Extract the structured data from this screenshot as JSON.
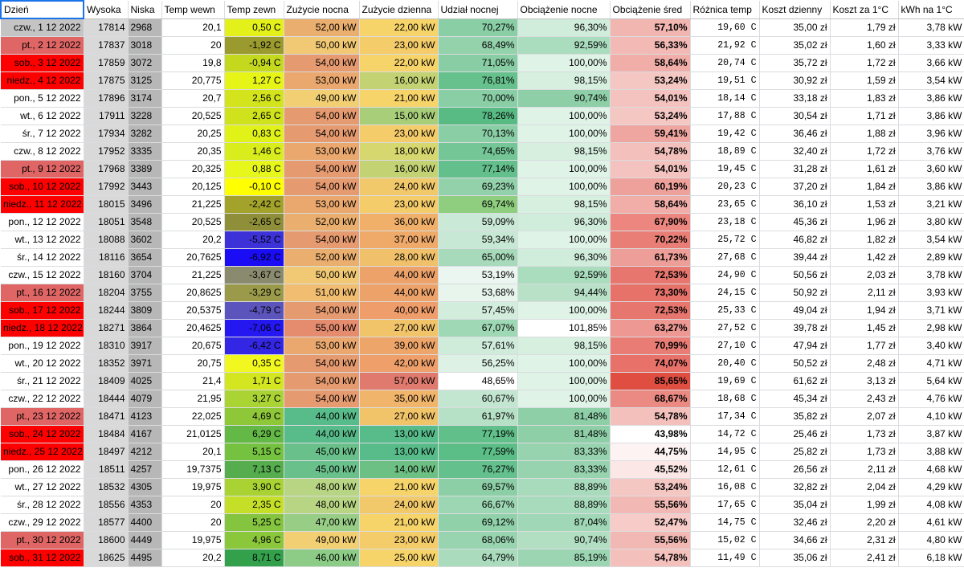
{
  "headers": [
    "Dzień",
    "Wysoka",
    "Niska",
    "Temp wewn",
    "Temp zewn",
    "Zużycie nocna",
    "Zużycie dzienna",
    "Udział nocnej",
    "Obciążenie nocne",
    "Obciążenie śred",
    "Różnica temp",
    "Koszt dzienny",
    "Koszt za 1°C",
    "kWh na 1°C"
  ],
  "rows": [
    [
      "czw., 1 12 2022",
      "17814",
      "2968",
      "20,1",
      "0,50 C",
      "52,00 kW",
      "22,00 kW",
      "70,27%",
      "96,30%",
      "57,10%",
      "19,60 C",
      "35,00 zł",
      "1,79 zł",
      "3,78 kW"
    ],
    [
      "pt., 2 12 2022",
      "17837",
      "3018",
      "20",
      "-1,92 C",
      "50,00 kW",
      "23,00 kW",
      "68,49%",
      "92,59%",
      "56,33%",
      "21,92 C",
      "35,02 zł",
      "1,60 zł",
      "3,33 kW"
    ],
    [
      "sob., 3 12 2022",
      "17859",
      "3072",
      "19,8",
      "-0,94 C",
      "54,00 kW",
      "22,00 kW",
      "71,05%",
      "100,00%",
      "58,64%",
      "20,74 C",
      "35,72 zł",
      "1,72 zł",
      "3,66 kW"
    ],
    [
      "niedz., 4 12 2022",
      "17875",
      "3125",
      "20,775",
      "1,27 C",
      "53,00 kW",
      "16,00 kW",
      "76,81%",
      "98,15%",
      "53,24%",
      "19,51 C",
      "30,92 zł",
      "1,59 zł",
      "3,54 kW"
    ],
    [
      "pon., 5 12 2022",
      "17896",
      "3174",
      "20,7",
      "2,56 C",
      "49,00 kW",
      "21,00 kW",
      "70,00%",
      "90,74%",
      "54,01%",
      "18,14 C",
      "33,18 zł",
      "1,83 zł",
      "3,86 kW"
    ],
    [
      "wt., 6 12 2022",
      "17911",
      "3228",
      "20,525",
      "2,65 C",
      "54,00 kW",
      "15,00 kW",
      "78,26%",
      "100,00%",
      "53,24%",
      "17,88 C",
      "30,54 zł",
      "1,71 zł",
      "3,86 kW"
    ],
    [
      "śr., 7 12 2022",
      "17934",
      "3282",
      "20,25",
      "0,83 C",
      "54,00 kW",
      "23,00 kW",
      "70,13%",
      "100,00%",
      "59,41%",
      "19,42 C",
      "36,46 zł",
      "1,88 zł",
      "3,96 kW"
    ],
    [
      "czw., 8 12 2022",
      "17952",
      "3335",
      "20,35",
      "1,46 C",
      "53,00 kW",
      "18,00 kW",
      "74,65%",
      "98,15%",
      "54,78%",
      "18,89 C",
      "32,40 zł",
      "1,72 zł",
      "3,76 kW"
    ],
    [
      "pt., 9 12 2022",
      "17968",
      "3389",
      "20,325",
      "0,88 C",
      "54,00 kW",
      "16,00 kW",
      "77,14%",
      "100,00%",
      "54,01%",
      "19,45 C",
      "31,28 zł",
      "1,61 zł",
      "3,60 kW"
    ],
    [
      "sob., 10 12 2022",
      "17992",
      "3443",
      "20,125",
      "-0,10 C",
      "54,00 kW",
      "24,00 kW",
      "69,23%",
      "100,00%",
      "60,19%",
      "20,23 C",
      "37,20 zł",
      "1,84 zł",
      "3,86 kW"
    ],
    [
      "niedz., 11 12 2022",
      "18015",
      "3496",
      "21,225",
      "-2,42 C",
      "53,00 kW",
      "23,00 kW",
      "69,74%",
      "98,15%",
      "58,64%",
      "23,65 C",
      "36,10 zł",
      "1,53 zł",
      "3,21 kW"
    ],
    [
      "pon., 12 12 2022",
      "18051",
      "3548",
      "20,525",
      "-2,65 C",
      "52,00 kW",
      "36,00 kW",
      "59,09%",
      "96,30%",
      "67,90%",
      "23,18 C",
      "45,36 zł",
      "1,96 zł",
      "3,80 kW"
    ],
    [
      "wt., 13 12 2022",
      "18088",
      "3602",
      "20,2",
      "-5,52 C",
      "54,00 kW",
      "37,00 kW",
      "59,34%",
      "100,00%",
      "70,22%",
      "25,72 C",
      "46,82 zł",
      "1,82 zł",
      "3,54 kW"
    ],
    [
      "śr., 14 12 2022",
      "18116",
      "3654",
      "20,7625",
      "-6,92 C",
      "52,00 kW",
      "28,00 kW",
      "65,00%",
      "96,30%",
      "61,73%",
      "27,68 C",
      "39,44 zł",
      "1,42 zł",
      "2,89 kW"
    ],
    [
      "czw., 15 12 2022",
      "18160",
      "3704",
      "21,225",
      "-3,67 C",
      "50,00 kW",
      "44,00 kW",
      "53,19%",
      "92,59%",
      "72,53%",
      "24,90 C",
      "50,56 zł",
      "2,03 zł",
      "3,78 kW"
    ],
    [
      "pt., 16 12 2022",
      "18204",
      "3755",
      "20,8625",
      "-3,29 C",
      "51,00 kW",
      "44,00 kW",
      "53,68%",
      "94,44%",
      "73,30%",
      "24,15 C",
      "50,92 zł",
      "2,11 zł",
      "3,93 kW"
    ],
    [
      "sob., 17 12 2022",
      "18244",
      "3809",
      "20,5375",
      "-4,79 C",
      "54,00 kW",
      "40,00 kW",
      "57,45%",
      "100,00%",
      "72,53%",
      "25,33 C",
      "49,04 zł",
      "1,94 zł",
      "3,71 kW"
    ],
    [
      "niedz., 18 12 2022",
      "18271",
      "3864",
      "20,4625",
      "-7,06 C",
      "55,00 kW",
      "27,00 kW",
      "67,07%",
      "101,85%",
      "63,27%",
      "27,52 C",
      "39,78 zł",
      "1,45 zł",
      "2,98 kW"
    ],
    [
      "pon., 19 12 2022",
      "18310",
      "3917",
      "20,675",
      "-6,42 C",
      "53,00 kW",
      "39,00 kW",
      "57,61%",
      "98,15%",
      "70,99%",
      "27,10 C",
      "47,94 zł",
      "1,77 zł",
      "3,40 kW"
    ],
    [
      "wt., 20 12 2022",
      "18352",
      "3971",
      "20,75",
      "0,35 C",
      "54,00 kW",
      "42,00 kW",
      "56,25%",
      "100,00%",
      "74,07%",
      "20,40 C",
      "50,52 zł",
      "2,48 zł",
      "4,71 kW"
    ],
    [
      "śr., 21 12 2022",
      "18409",
      "4025",
      "21,4",
      "1,71 C",
      "54,00 kW",
      "57,00 kW",
      "48,65%",
      "100,00%",
      "85,65%",
      "19,69 C",
      "61,62 zł",
      "3,13 zł",
      "5,64 kW"
    ],
    [
      "czw., 22 12 2022",
      "18444",
      "4079",
      "21,95",
      "3,27 C",
      "54,00 kW",
      "35,00 kW",
      "60,67%",
      "100,00%",
      "68,67%",
      "18,68 C",
      "45,34 zł",
      "2,43 zł",
      "4,76 kW"
    ],
    [
      "pt., 23 12 2022",
      "18471",
      "4123",
      "22,025",
      "4,69 C",
      "44,00 kW",
      "27,00 kW",
      "61,97%",
      "81,48%",
      "54,78%",
      "17,34 C",
      "35,82 zł",
      "2,07 zł",
      "4,10 kW"
    ],
    [
      "sob., 24 12 2022",
      "18484",
      "4167",
      "21,0125",
      "6,29 C",
      "44,00 kW",
      "13,00 kW",
      "77,19%",
      "81,48%",
      "43,98%",
      "14,72 C",
      "25,46 zł",
      "1,73 zł",
      "3,87 kW"
    ],
    [
      "niedz., 25 12 2022",
      "18497",
      "4212",
      "20,1",
      "5,15 C",
      "45,00 kW",
      "13,00 kW",
      "77,59%",
      "83,33%",
      "44,75%",
      "14,95 C",
      "25,82 zł",
      "1,73 zł",
      "3,88 kW"
    ],
    [
      "pon., 26 12 2022",
      "18511",
      "4257",
      "19,7375",
      "7,13 C",
      "45,00 kW",
      "14,00 kW",
      "76,27%",
      "83,33%",
      "45,52%",
      "12,61 C",
      "26,56 zł",
      "2,11 zł",
      "4,68 kW"
    ],
    [
      "wt., 27 12 2022",
      "18532",
      "4305",
      "19,975",
      "3,90 C",
      "48,00 kW",
      "21,00 kW",
      "69,57%",
      "88,89%",
      "53,24%",
      "16,08 C",
      "32,82 zł",
      "2,04 zł",
      "4,29 kW"
    ],
    [
      "śr., 28 12 2022",
      "18556",
      "4353",
      "20",
      "2,35 C",
      "48,00 kW",
      "24,00 kW",
      "66,67%",
      "88,89%",
      "55,56%",
      "17,65 C",
      "35,04 zł",
      "1,99 zł",
      "4,08 kW"
    ],
    [
      "czw., 29 12 2022",
      "18577",
      "4400",
      "20",
      "5,25 C",
      "47,00 kW",
      "21,00 kW",
      "69,12%",
      "87,04%",
      "52,47%",
      "14,75 C",
      "32,46 zł",
      "2,20 zł",
      "4,61 kW"
    ],
    [
      "pt., 30 12 2022",
      "18600",
      "4449",
      "19,975",
      "4,96 C",
      "49,00 kW",
      "23,00 kW",
      "68,06%",
      "90,74%",
      "55,56%",
      "15,02 C",
      "34,66 zł",
      "2,31 zł",
      "4,80 kW"
    ],
    [
      "sob., 31 12 2022",
      "18625",
      "4495",
      "20,2",
      "8,71 C",
      "46,00 kW",
      "25,00 kW",
      "64,79%",
      "85,19%",
      "54,78%",
      "11,49 C",
      "35,06 zł",
      "2,41 zł",
      "6,18 kW"
    ]
  ],
  "colors": {
    "day_gray": "#c4c4c4",
    "day_white": "#ffffff",
    "day_pink": "#e06666",
    "day_red": "#ff0000",
    "high_gray": "#d9d9d9",
    "low_gray": "#b7b7b7",
    "temp_zewn": [
      "#e3f01a",
      "#9a9a2e",
      "#c4d91e",
      "#e6f516",
      "#d3e41c",
      "#cfe21b",
      "#e1f219",
      "#d9ec1c",
      "#e8f71b",
      "#ffff00",
      "#a3a22a",
      "#8f8f3a",
      "#3d32d7",
      "#1b0cf6",
      "#8a8a6e",
      "#9a9a4a",
      "#5a54bc",
      "#2417f0",
      "#3326e5",
      "#f2f71f",
      "#d4e61f",
      "#a9d434",
      "#8ec839",
      "#64b846",
      "#75c240",
      "#56ad4e",
      "#a8d332",
      "#c5df28",
      "#85c43f",
      "#8bc73a",
      "#33a14c"
    ],
    "zuzycie_nocna": [
      "#eaae6e",
      "#f1c873",
      "#e69a6f",
      "#eaa86e",
      "#f2cf73",
      "#e69a6f",
      "#e69a6f",
      "#eaa86e",
      "#e69a6f",
      "#e69a6f",
      "#eaa86e",
      "#eaae6e",
      "#e69a6f",
      "#eaae6e",
      "#f1c873",
      "#f0bd71",
      "#e69a6f",
      "#e58b6e",
      "#eaa86e",
      "#e69a6f",
      "#e69a6f",
      "#e69a6f",
      "#57bb8a",
      "#57bb8a",
      "#6ac08a",
      "#6ac08a",
      "#b7d583",
      "#b7d583",
      "#98cd86",
      "#f2cf73",
      "#8ccc87"
    ],
    "zuzycie_dzienna": [
      "#f6d46a",
      "#f4cc6a",
      "#f6d46a",
      "#c3d373",
      "#f6d46a",
      "#a8ce7a",
      "#f4cc6a",
      "#d6d76e",
      "#c3d373",
      "#f1c86a",
      "#f4cc6a",
      "#f0b06a",
      "#efaa6a",
      "#f0c16a",
      "#eda26a",
      "#eda26a",
      "#ef9d6b",
      "#f1c46a",
      "#eda56a",
      "#ee9f6a",
      "#e07a6e",
      "#f0b46a",
      "#f1c46a",
      "#57bb8a",
      "#57bb8a",
      "#6dc083",
      "#f6d46a",
      "#f1c86a",
      "#f6d46a",
      "#f4cc6a",
      "#f6d46a"
    ],
    "udzial_nocnej": [
      "#89cea5",
      "#93d2ab",
      "#88cda4",
      "#66c18d",
      "#89cea5",
      "#58bb84",
      "#89cea5",
      "#74c696",
      "#63c08c",
      "#92d1aa",
      "#8ece7e",
      "#cae9d6",
      "#c7e8d4",
      "#a6daba",
      "#eaf6ef",
      "#e7f5ec",
      "#d3eddd",
      "#9fd8b5",
      "#cfecdb",
      "#ddf1e5",
      "#ffffff",
      "#c3e6d1",
      "#b7e1c7",
      "#61bf8a",
      "#5cbe87",
      "#64c08d",
      "#8ccfa6",
      "#9cd6b3",
      "#91d1aa",
      "#98d4b0",
      "#a9dbbc"
    ],
    "obciazenie_nocne": [
      "#d0ecdb",
      "#aadcbe",
      "#dff3e7",
      "#d6efdf",
      "#8ecfa8",
      "#dff3e7",
      "#dff3e7",
      "#d6efdf",
      "#dff3e7",
      "#dff3e7",
      "#d6efdf",
      "#d0ecdb",
      "#dff3e7",
      "#d0ecdb",
      "#aadcbe",
      "#b8e1c8",
      "#dff3e7",
      "#ffffff",
      "#d6efdf",
      "#dff3e7",
      "#dff3e7",
      "#dff3e7",
      "#8ecfa8",
      "#8ecfa8",
      "#97d3af",
      "#97d3af",
      "#a8dbbc",
      "#a8dbbc",
      "#a0d7b6",
      "#b2dec2",
      "#9bd5b2"
    ],
    "obciazenie_sred": [
      "#f2b6b1",
      "#f3b9b4",
      "#f1aea9",
      "#f5c7c3",
      "#f5c3bf",
      "#f5c7c3",
      "#efa6a1",
      "#f4c0bc",
      "#f5c3bf",
      "#eea19b",
      "#f1aea9",
      "#ec867f",
      "#e97e77",
      "#ee9e98",
      "#e7766e",
      "#e6726a",
      "#e7766e",
      "#ed9892",
      "#e97c75",
      "#e8716a",
      "#e04d41",
      "#eb8a83",
      "#f4c0bc",
      "#ffffff",
      "#fdf3f2",
      "#fbe8e6",
      "#f5c7c3",
      "#f2b9b4",
      "#f6cbc8",
      "#f2b9b4",
      "#f4c0bc"
    ]
  }
}
